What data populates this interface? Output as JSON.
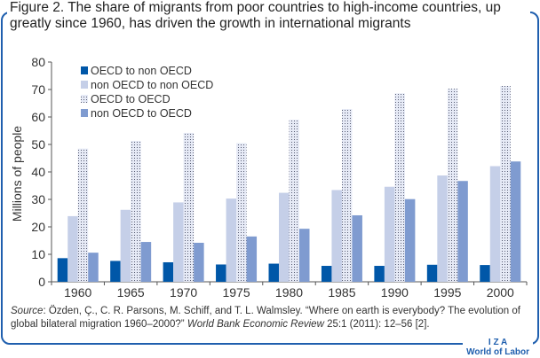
{
  "title": "Figure 2. The share of migrants from poor countries to high-income countries, up greatly since 1960, has driven the growth in international migrants",
  "source": {
    "label": "Source",
    "text1": ": Özden, Ç., C. R. Parsons, M. Schiff, and T. L. Walmsley. “Where on earth is everybody? The evolution of global bilateral migration 1960–2000?” ",
    "journal": "World Bank Economic Review",
    "text2": " 25:1 (2011): 12–56 [2]."
  },
  "logo": {
    "line1": "I Z A",
    "line2": "World of Labor"
  },
  "chart_data": {
    "type": "bar",
    "title": "",
    "xlabel": "",
    "ylabel": "Millions of people",
    "ylim": [
      0,
      80
    ],
    "yticks": [
      "0",
      "10",
      "20",
      "30",
      "40",
      "50",
      "60",
      "70",
      "80"
    ],
    "categories": [
      "1960",
      "1965",
      "1970",
      "1975",
      "1980",
      "1985",
      "1990",
      "1995",
      "2000"
    ],
    "legend_position": "top-left",
    "series": [
      {
        "name": "OECD to non OECD",
        "color": "#0057a8",
        "pattern": "solid",
        "values": [
          8.6,
          7.6,
          7.1,
          6.3,
          6.6,
          5.8,
          5.8,
          6.2,
          6.1
        ]
      },
      {
        "name": "non OECD to non OECD",
        "color": "#c5cfe8",
        "pattern": "solid",
        "values": [
          23.9,
          26.2,
          28.9,
          30.3,
          32.4,
          33.4,
          34.6,
          38.7,
          42.1
        ]
      },
      {
        "name": "OECD to OECD",
        "color": "#e6eaf6",
        "pattern": "dots",
        "values": [
          48.5,
          51.3,
          54.2,
          50.5,
          59.0,
          62.9,
          68.6,
          70.3,
          71.3
        ]
      },
      {
        "name": "non OECD to OECD",
        "color": "#7f9bd0",
        "pattern": "solid",
        "values": [
          10.6,
          14.5,
          14.2,
          16.5,
          19.3,
          24.2,
          30.1,
          36.7,
          43.8
        ]
      }
    ]
  }
}
